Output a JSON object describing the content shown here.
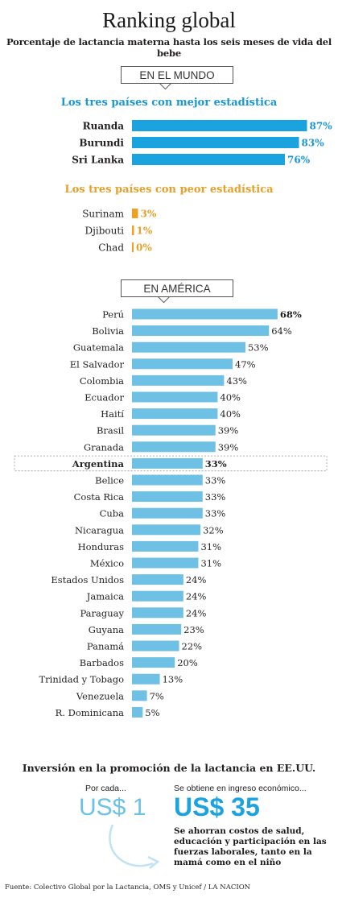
{
  "header": {
    "title": "Ranking global",
    "subtitle": "Porcentaje de lactancia materna hasta los seis meses de vida del bebe"
  },
  "sections": {
    "world": "EN EL MUNDO",
    "america": "EN AMÉRICA",
    "best_heading": "Los tres países con mejor estadística",
    "worst_heading": "Los tres países con peor estadística"
  },
  "colors": {
    "best_bar": "#1aa3df",
    "worst_bar": "#f0a020",
    "america_bar": "#6ec1e4",
    "best_heading": "#1a96d4",
    "worst_heading": "#e9a02a"
  },
  "chart_data": [
    {
      "type": "bar",
      "orientation": "horizontal",
      "title": "Los tres países con mejor estadística",
      "categories": [
        "Ruanda",
        "Burundi",
        "Sri Lanka"
      ],
      "values": [
        87,
        83,
        76
      ],
      "labels": [
        "87%",
        "83%",
        "76%"
      ],
      "xlim": [
        0,
        100
      ]
    },
    {
      "type": "bar",
      "orientation": "horizontal",
      "title": "Los tres países con peor estadística",
      "categories": [
        "Surinam",
        "Djibouti",
        "Chad"
      ],
      "values": [
        3,
        1,
        0
      ],
      "labels": [
        "3%",
        "1%",
        "0%"
      ],
      "xlim": [
        0,
        100
      ]
    },
    {
      "type": "bar",
      "orientation": "horizontal",
      "title": "EN AMÉRICA",
      "highlight": "Argentina",
      "categories": [
        "Perú",
        "Bolivia",
        "Guatemala",
        "El Salvador",
        "Colombia",
        "Ecuador",
        "Haití",
        "Brasil",
        "Granada",
        "Argentina",
        "Belice",
        "Costa Rica",
        "Cuba",
        "Nicaragua",
        "Honduras",
        "México",
        "Estados Unidos",
        "Jamaica",
        "Paraguay",
        "Guyana",
        "Panamá",
        "Barbados",
        "Trinidad y Tobago",
        "Venezuela",
        "R. Dominicana"
      ],
      "values": [
        68,
        64,
        53,
        47,
        43,
        40,
        40,
        39,
        39,
        33,
        33,
        33,
        33,
        32,
        31,
        31,
        24,
        24,
        24,
        23,
        22,
        20,
        13,
        7,
        5
      ],
      "labels": [
        "68%",
        "64%",
        "53%",
        "47%",
        "43%",
        "40%",
        "40%",
        "39%",
        "39%",
        "33%",
        "33%",
        "33%",
        "33%",
        "32%",
        "31%",
        "31%",
        "24%",
        "24%",
        "24%",
        "23%",
        "22%",
        "20%",
        "13%",
        "7%",
        "5%"
      ],
      "xlim": [
        0,
        100
      ]
    }
  ],
  "investment": {
    "title": "Inversión en la promoción de la lactancia en EE.UU.",
    "per_label": "Por cada...",
    "per_value": "US$ 1",
    "obtain_label": "Se obtiene en ingreso económico...",
    "obtain_value": "US$ 35",
    "savings_text": "Se ahorran costos de salud, educación y participación en las fuerzas laborales, tanto en la mamá como en el niño"
  },
  "source": "Fuente: Colectivo Global por la Lactancia, OMS y Unicef / LA NACION"
}
